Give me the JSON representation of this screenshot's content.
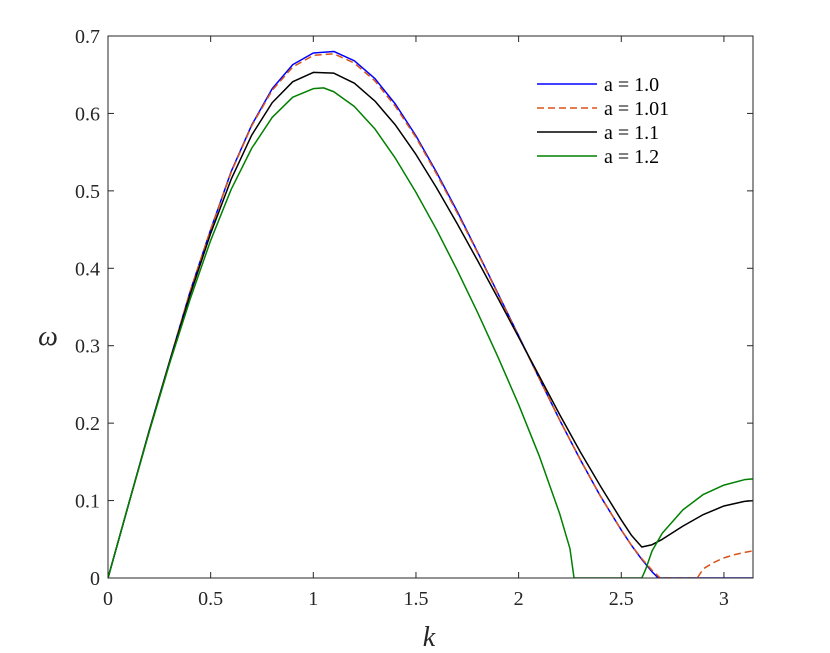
{
  "chart_data": {
    "type": "line",
    "title": "",
    "xlabel": "k",
    "ylabel": "ω",
    "xlim": [
      0,
      3.14159
    ],
    "ylim": [
      0,
      0.7
    ],
    "xticks": [
      0,
      0.5,
      1,
      1.5,
      2,
      2.5,
      3
    ],
    "xtick_labels": [
      "0",
      "0.5",
      "1",
      "1.5",
      "2",
      "2.5",
      "3"
    ],
    "yticks": [
      0,
      0.1,
      0.2,
      0.3,
      0.4,
      0.5,
      0.6,
      0.7
    ],
    "ytick_labels": [
      "0",
      "0.1",
      "0.2",
      "0.3",
      "0.4",
      "0.5",
      "0.6",
      "0.7"
    ],
    "grid": false,
    "legend_position": "top-right",
    "series": [
      {
        "name": "a = 1.0",
        "color": "#0000ff",
        "dash": "solid",
        "x": [
          0,
          0.1,
          0.2,
          0.3,
          0.4,
          0.5,
          0.6,
          0.7,
          0.8,
          0.9,
          1.0,
          1.1,
          1.2,
          1.3,
          1.4,
          1.5,
          1.6,
          1.7,
          1.8,
          1.9,
          2.0,
          2.1,
          2.2,
          2.3,
          2.4,
          2.5,
          2.55,
          2.6,
          2.65,
          2.68,
          2.7,
          2.8,
          2.9,
          3.0,
          3.14159
        ],
        "y": [
          0,
          0.095,
          0.19,
          0.28,
          0.37,
          0.45,
          0.525,
          0.585,
          0.632,
          0.663,
          0.678,
          0.68,
          0.668,
          0.645,
          0.612,
          0.571,
          0.524,
          0.474,
          0.421,
          0.367,
          0.313,
          0.258,
          0.204,
          0.153,
          0.105,
          0.062,
          0.042,
          0.024,
          0.008,
          0,
          0,
          0,
          0,
          0,
          0
        ]
      },
      {
        "name": "a = 1.01",
        "color": "#d95319",
        "dash": "dashed",
        "x": [
          0,
          0.1,
          0.2,
          0.3,
          0.4,
          0.5,
          0.6,
          0.7,
          0.8,
          0.9,
          1.0,
          1.1,
          1.2,
          1.3,
          1.4,
          1.5,
          1.6,
          1.7,
          1.8,
          1.9,
          2.0,
          2.1,
          2.2,
          2.3,
          2.4,
          2.5,
          2.55,
          2.6,
          2.65,
          2.69,
          2.75,
          2.8,
          2.87,
          2.9,
          2.95,
          3.0,
          3.05,
          3.1,
          3.14159
        ],
        "y": [
          0,
          0.095,
          0.19,
          0.28,
          0.37,
          0.45,
          0.524,
          0.584,
          0.63,
          0.66,
          0.675,
          0.677,
          0.665,
          0.642,
          0.609,
          0.569,
          0.522,
          0.472,
          0.42,
          0.366,
          0.312,
          0.258,
          0.204,
          0.153,
          0.105,
          0.062,
          0.042,
          0.025,
          0.01,
          0,
          0,
          0,
          0,
          0.012,
          0.02,
          0.026,
          0.03,
          0.033,
          0.035
        ]
      },
      {
        "name": "a = 1.1",
        "color": "#000000",
        "dash": "solid",
        "x": [
          0,
          0.1,
          0.2,
          0.3,
          0.4,
          0.5,
          0.6,
          0.7,
          0.8,
          0.9,
          1.0,
          1.1,
          1.2,
          1.3,
          1.4,
          1.5,
          1.6,
          1.7,
          1.8,
          1.9,
          2.0,
          2.1,
          2.2,
          2.3,
          2.4,
          2.5,
          2.55,
          2.6,
          2.65,
          2.7,
          2.8,
          2.9,
          3.0,
          3.1,
          3.14159
        ],
        "y": [
          0,
          0.095,
          0.189,
          0.279,
          0.366,
          0.445,
          0.515,
          0.572,
          0.614,
          0.641,
          0.653,
          0.652,
          0.639,
          0.616,
          0.585,
          0.547,
          0.504,
          0.458,
          0.41,
          0.361,
          0.311,
          0.261,
          0.211,
          0.163,
          0.118,
          0.075,
          0.055,
          0.04,
          0.043,
          0.05,
          0.067,
          0.082,
          0.093,
          0.099,
          0.1
        ]
      },
      {
        "name": "a = 1.2",
        "color": "#008000",
        "dash": "solid",
        "x": [
          0,
          0.1,
          0.2,
          0.3,
          0.4,
          0.5,
          0.6,
          0.7,
          0.8,
          0.9,
          1.0,
          1.05,
          1.1,
          1.2,
          1.3,
          1.4,
          1.5,
          1.6,
          1.7,
          1.8,
          1.9,
          2.0,
          2.1,
          2.2,
          2.25,
          2.27,
          2.3,
          2.4,
          2.5,
          2.6,
          2.62,
          2.65,
          2.7,
          2.8,
          2.9,
          3.0,
          3.1,
          3.14159
        ],
        "y": [
          0,
          0.095,
          0.188,
          0.277,
          0.36,
          0.436,
          0.502,
          0.555,
          0.595,
          0.621,
          0.632,
          0.633,
          0.628,
          0.609,
          0.58,
          0.542,
          0.498,
          0.45,
          0.398,
          0.343,
          0.285,
          0.224,
          0.158,
          0.083,
          0.038,
          0,
          0,
          0,
          0,
          0,
          0.012,
          0.035,
          0.058,
          0.088,
          0.108,
          0.12,
          0.127,
          0.128
        ]
      }
    ]
  }
}
